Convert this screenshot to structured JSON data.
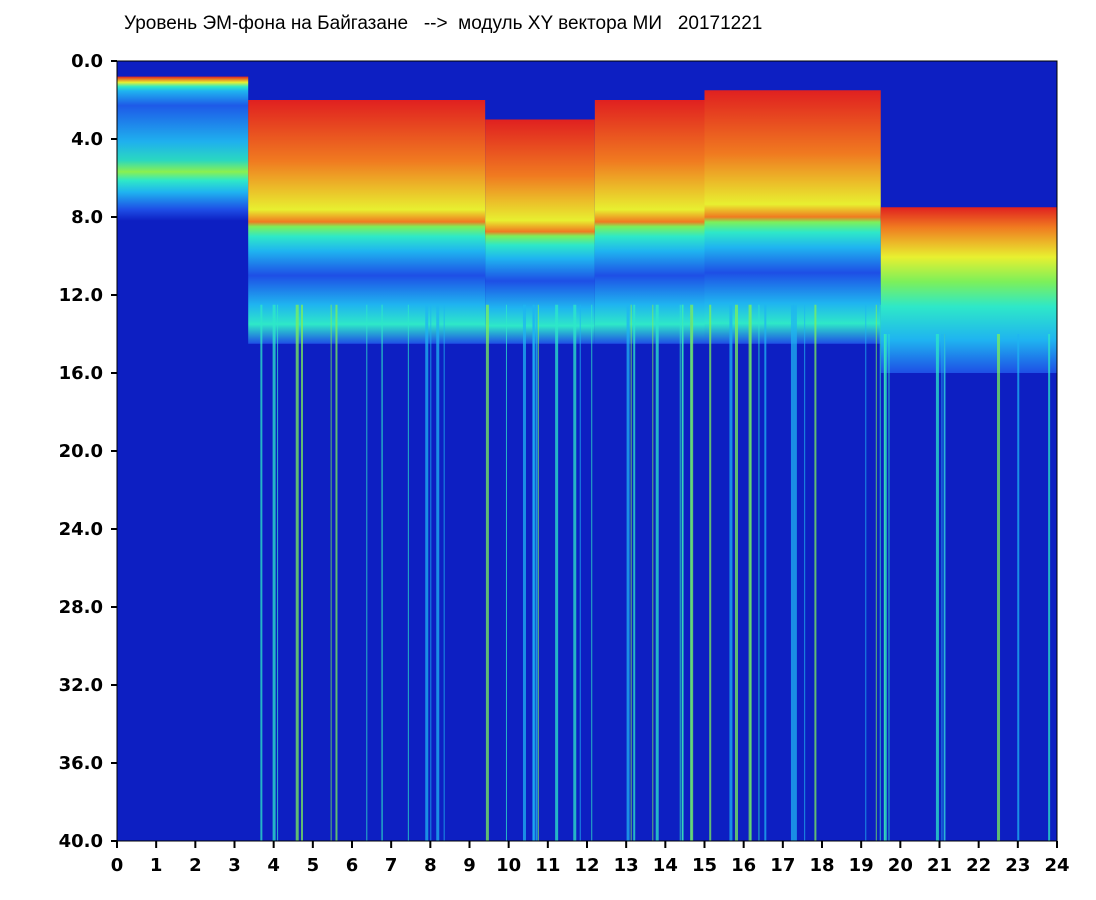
{
  "chart_data": {
    "type": "heatmap",
    "title": "Уровень ЭМ-фона на Байгазане   -->  модуль XY вектора МИ   20171221",
    "xlabel": "",
    "ylabel": "",
    "xlim": [
      0,
      24
    ],
    "ylim": [
      40.0,
      0.0
    ],
    "x_ticks": [
      "0",
      "1",
      "2",
      "3",
      "4",
      "5",
      "6",
      "7",
      "8",
      "9",
      "10",
      "11",
      "12",
      "13",
      "14",
      "15",
      "16",
      "17",
      "18",
      "19",
      "20",
      "21",
      "22",
      "23",
      "24"
    ],
    "y_ticks": [
      "0.0",
      "4.0",
      "8.0",
      "12.0",
      "16.0",
      "20.0",
      "24.0",
      "28.0",
      "32.0",
      "36.0",
      "40.0"
    ],
    "y_inverted": true,
    "colormap": [
      "#0a1fb8",
      "#1e4fe6",
      "#1fb4f0",
      "#2ee8c8",
      "#7cf05a",
      "#e8f030",
      "#f07a20",
      "#e02020"
    ],
    "background_color": "#0d1fc2",
    "segments": [
      {
        "x": [
          0.0,
          3.35
        ],
        "signal_top": 0.8,
        "strong_bottom": 8.2
      },
      {
        "x": [
          3.35,
          9.4
        ],
        "signal_top": 2.0,
        "strong_bottom": 14.5
      },
      {
        "x": [
          9.4,
          12.2
        ],
        "signal_top": 3.0,
        "strong_bottom": 14.5
      },
      {
        "x": [
          12.2,
          15.0
        ],
        "signal_top": 2.0,
        "strong_bottom": 14.5
      },
      {
        "x": [
          15.0,
          19.5
        ],
        "signal_top": 1.5,
        "strong_bottom": 14.5
      },
      {
        "x": [
          19.5,
          24.0
        ],
        "signal_top": 7.5,
        "strong_bottom": 16.0
      }
    ]
  }
}
